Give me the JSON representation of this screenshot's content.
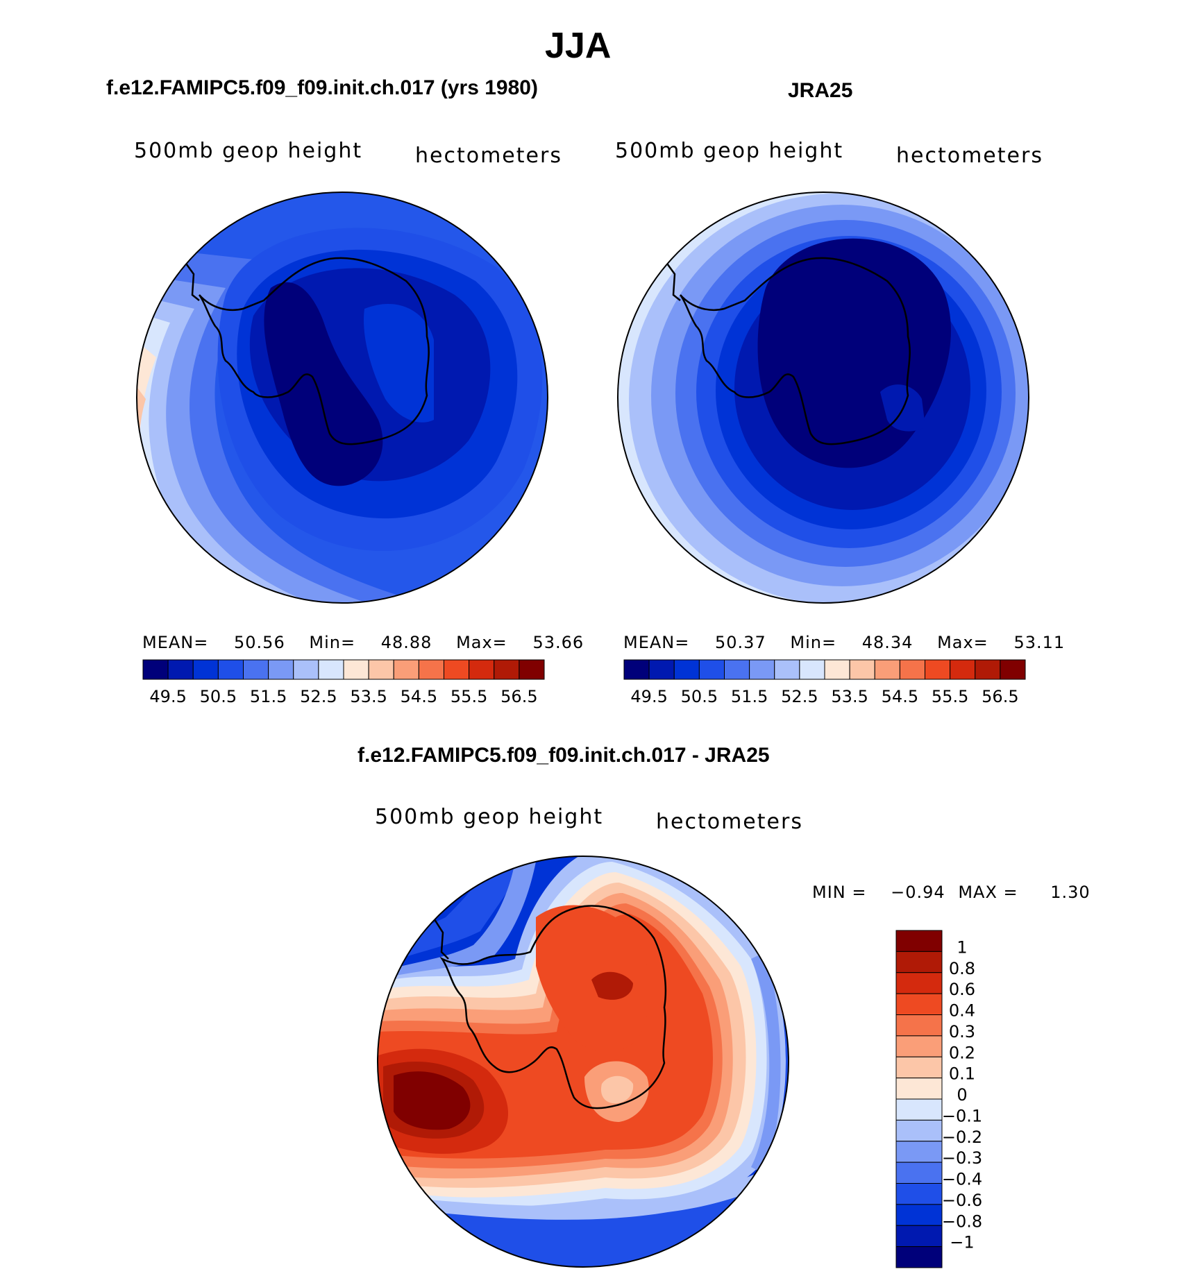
{
  "figure_title": "JJA",
  "colors": {
    "abs_palette": [
      "#00007a",
      "#0019b0",
      "#0033d6",
      "#1f4fe8",
      "#4a72f0",
      "#7a99f5",
      "#aac0fa",
      "#d8e6fd",
      "#fde7d6",
      "#fcc6a8",
      "#fa9e78",
      "#f5734a",
      "#ee4a22",
      "#d42a0e",
      "#b01a06",
      "#800000"
    ],
    "diff_palette": [
      "#00007a",
      "#0019b0",
      "#0033d6",
      "#1f4fe8",
      "#4a72f0",
      "#7a99f5",
      "#aac0fa",
      "#d8e6fd",
      "#fde7d6",
      "#fcc6a8",
      "#fa9e78",
      "#f5734a",
      "#ee4a22",
      "#d42a0e",
      "#b01a06",
      "#800000"
    ]
  },
  "chart_data": [
    {
      "type": "heatmap",
      "title": "f.e12.FAMIPC5.f09_f09.init.ch.017 (yrs 1980)",
      "left_label": "500mb geop height",
      "right_label": "hectometers",
      "stats": {
        "mean_label": "MEAN=",
        "mean": "50.56",
        "min_label": "Min=",
        "min": "48.88",
        "max_label": "Max=",
        "max": "53.66"
      },
      "levels": [
        49.5,
        50,
        50.5,
        51,
        51.5,
        52,
        52.5,
        53,
        53.5,
        54,
        54.5,
        55,
        55.5,
        56,
        56.5
      ],
      "tick_labels": [
        "49.5",
        "50.5",
        "51.5",
        "52.5",
        "53.5",
        "54.5",
        "55.5",
        "56.5"
      ],
      "projection": "south polar stereographic"
    },
    {
      "type": "heatmap",
      "title": "JRA25",
      "left_label": "500mb geop height",
      "right_label": "hectometers",
      "stats": {
        "mean_label": "MEAN=",
        "mean": "50.37",
        "min_label": "Min=",
        "min": "48.34",
        "max_label": "Max=",
        "max": "53.11"
      },
      "levels": [
        49.5,
        50,
        50.5,
        51,
        51.5,
        52,
        52.5,
        53,
        53.5,
        54,
        54.5,
        55,
        55.5,
        56,
        56.5
      ],
      "tick_labels": [
        "49.5",
        "50.5",
        "51.5",
        "52.5",
        "53.5",
        "54.5",
        "55.5",
        "56.5"
      ],
      "projection": "south polar stereographic"
    },
    {
      "type": "heatmap",
      "title": "f.e12.FAMIPC5.f09_f09.init.ch.017 - JRA25",
      "left_label": "500mb geop height",
      "right_label": "hectometers",
      "stats": {
        "min_label": "MIN =",
        "min": "−0.94",
        "max_label": "MAX =",
        "max": "1.30"
      },
      "levels": [
        -1,
        -0.8,
        -0.6,
        -0.4,
        -0.3,
        -0.2,
        -0.1,
        0,
        0.1,
        0.2,
        0.3,
        0.4,
        0.6,
        0.8,
        1
      ],
      "tick_labels": [
        "1",
        "0.8",
        "0.6",
        "0.4",
        "0.3",
        "0.2",
        "0.1",
        "0",
        "−0.1",
        "−0.2",
        "−0.3",
        "−0.4",
        "−0.6",
        "−0.8",
        "−1"
      ],
      "projection": "south polar stereographic"
    }
  ]
}
